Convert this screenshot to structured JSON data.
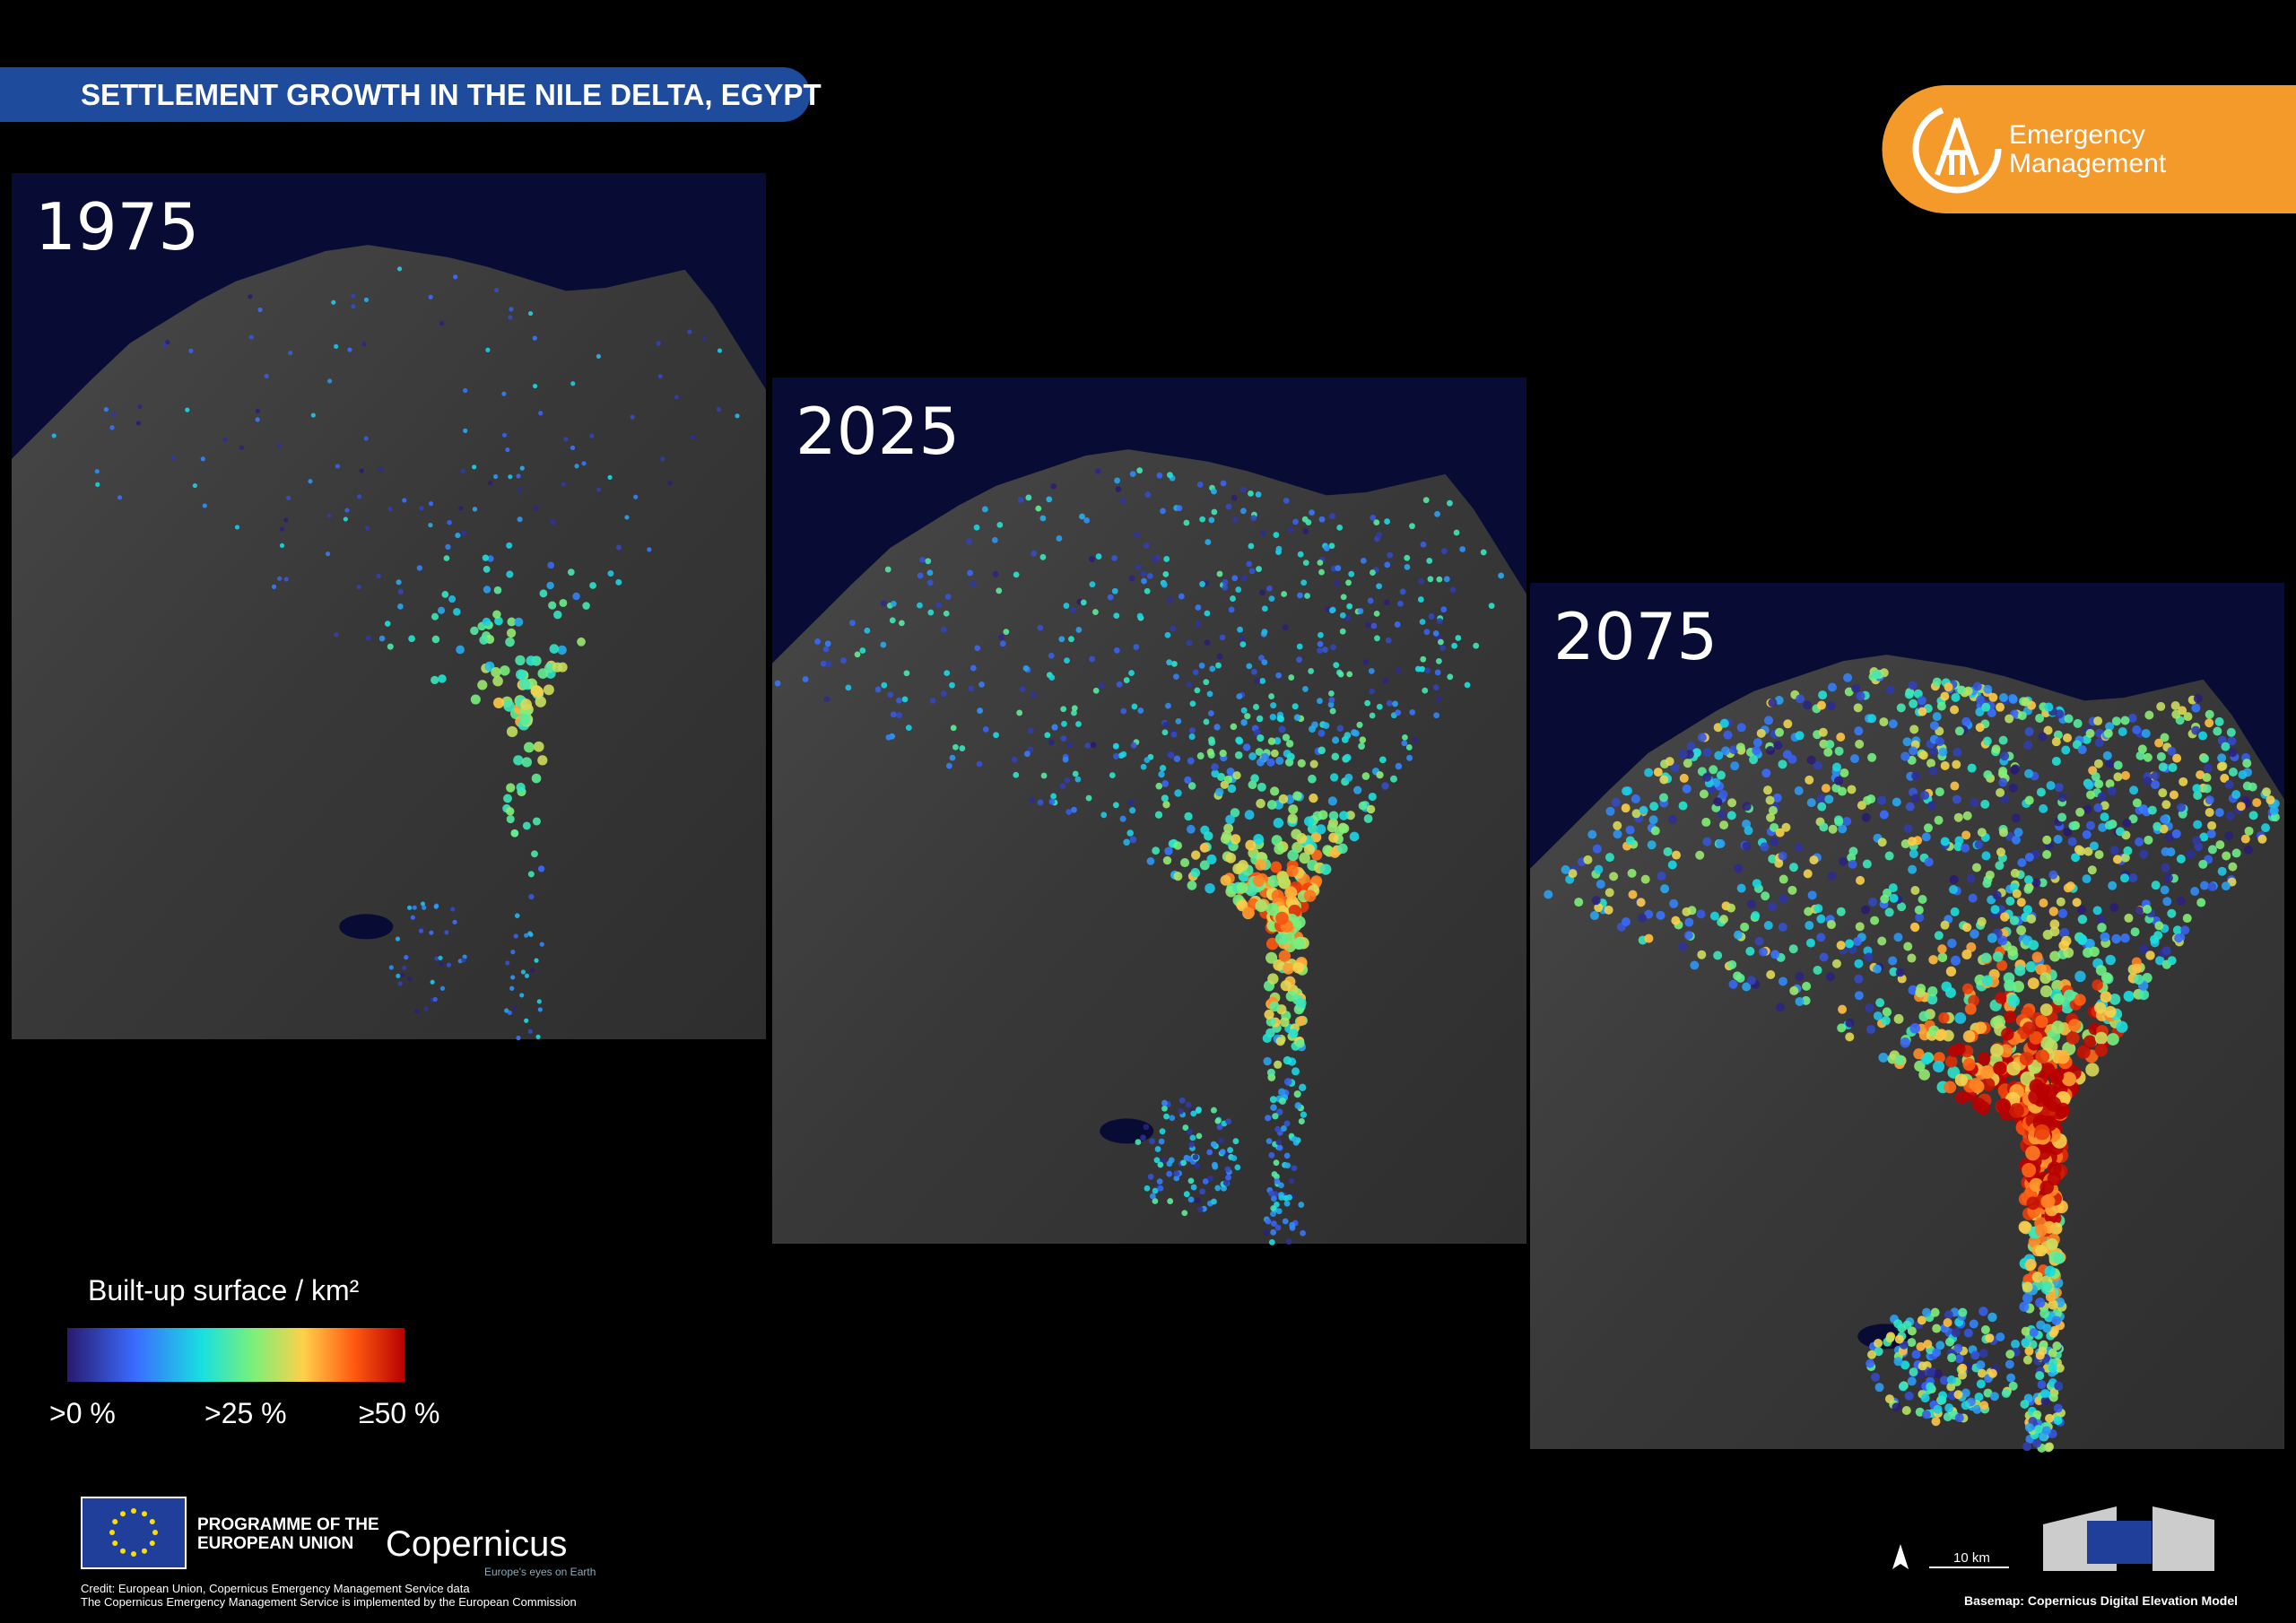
{
  "header": {
    "title": "SETTLEMENT GROWTH IN THE NILE DELTA, EGYPT",
    "logo": [
      "Emergency",
      "Management"
    ]
  },
  "panels": [
    {
      "year": "1975"
    },
    {
      "year": "2025"
    },
    {
      "year": "2075"
    }
  ],
  "legend": {
    "title": "Built-up surface / km²",
    "labels": [
      ">0 %",
      ">25 %",
      "≥50 %"
    ]
  },
  "footer": {
    "programme": [
      "PROGRAMME OF THE",
      "EUROPEAN UNION"
    ],
    "copernicus": "Copernicus",
    "tagline": "Europe's eyes on Earth",
    "credit": [
      "Credit: European Union, Copernicus Emergency Management Service data",
      "The Copernicus Emergency Management Service is implemented by the European Commission"
    ],
    "scale": "10 km",
    "basemap": "Basemap: Copernicus Digital Elevation Model"
  }
}
